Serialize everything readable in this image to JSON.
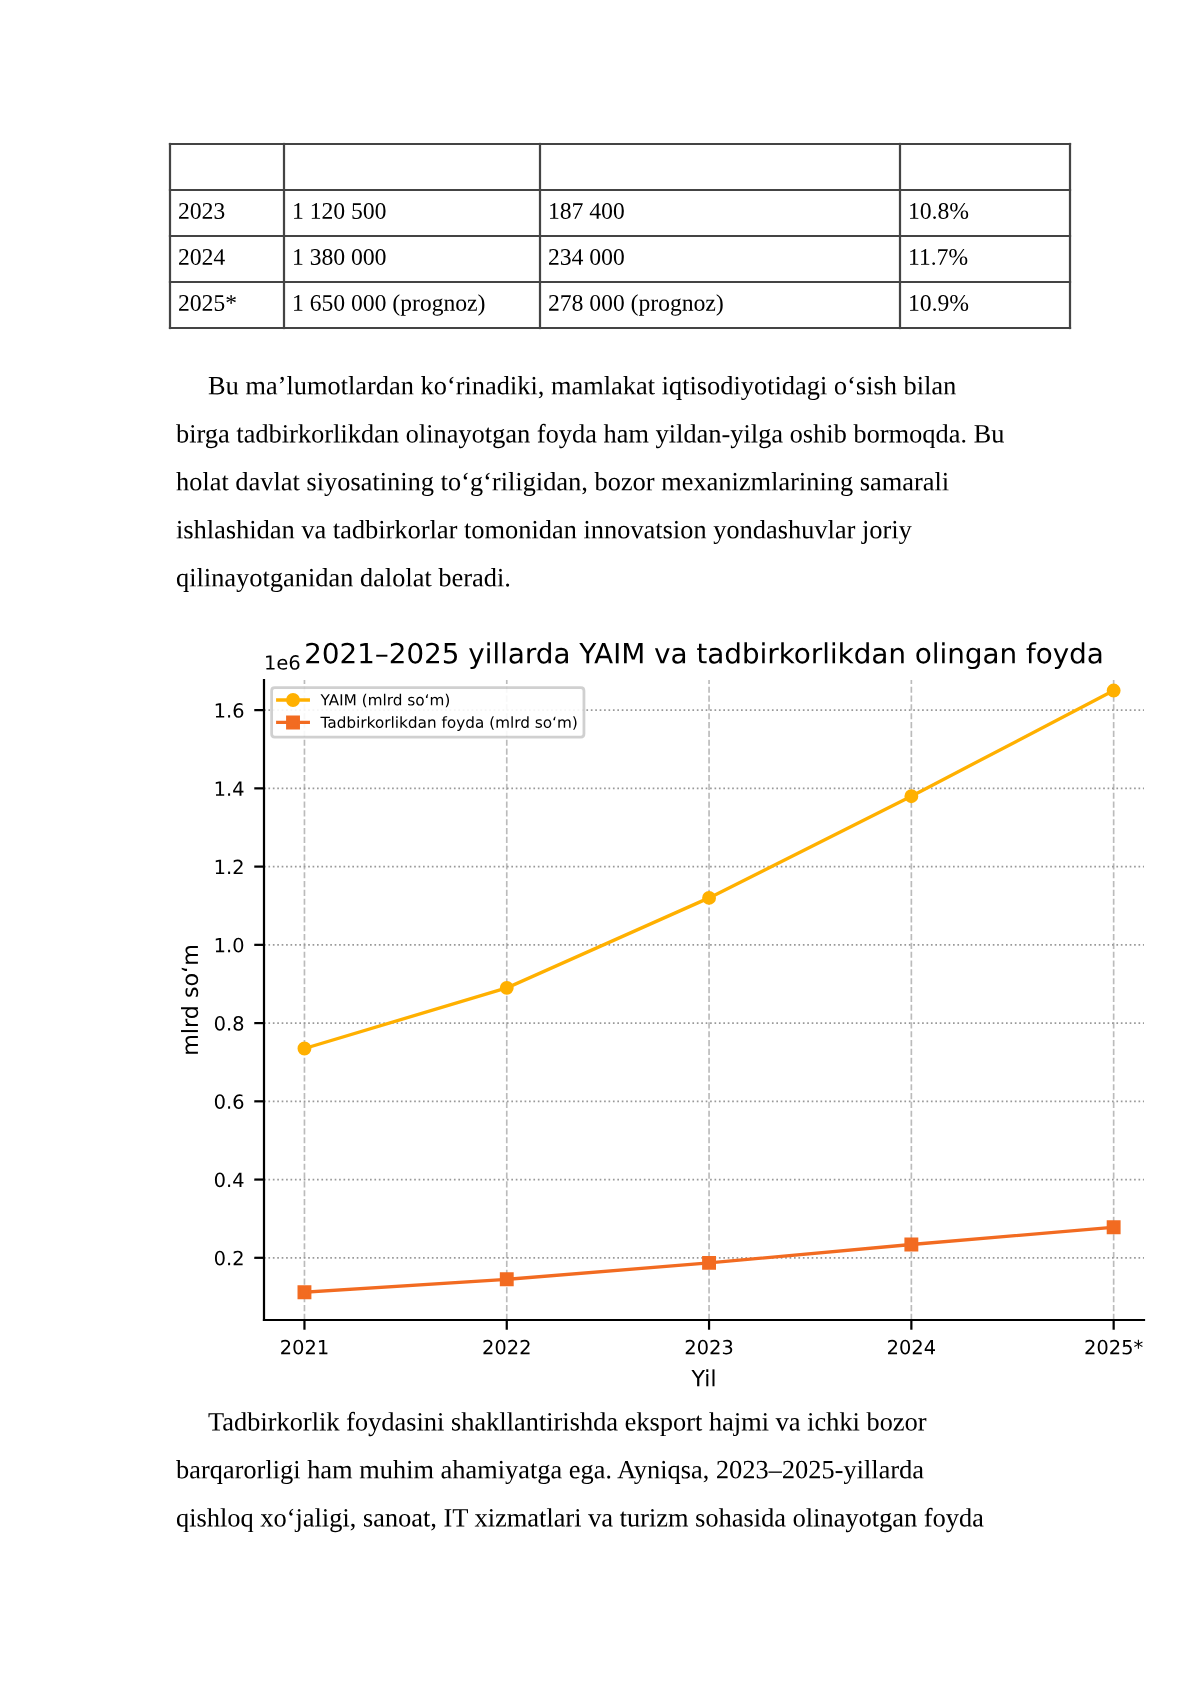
{
  "chart_data": {
    "type": "line",
    "title": "2021–2025 yillarda YAIM va tadbirkorlikdan olingan foyda",
    "xlabel": "Yil",
    "ylabel": "mlrd so‘m",
    "categories": [
      "2021",
      "2022",
      "2023",
      "2024",
      "2025*"
    ],
    "series": [
      {
        "name": "YAIM (mlrd so‘m)",
        "color": "#ffb000",
        "marker": "circle",
        "values": [
          0.735,
          0.89,
          1.12,
          1.38,
          1.65
        ]
      },
      {
        "name": "Tadbirkorlikdan foyda (mlrd so‘m)",
        "color": "#f26b21",
        "marker": "square",
        "values": [
          0.112,
          0.145,
          0.187,
          0.234,
          0.278
        ]
      }
    ],
    "ylim": [
      0.041,
      1.677
    ],
    "yticks": [
      {
        "value": 0.2,
        "label": "0.2"
      },
      {
        "value": 0.4,
        "label": "0.4"
      },
      {
        "value": 0.6,
        "label": "0.6"
      },
      {
        "value": 0.8,
        "label": "0.8"
      },
      {
        "value": 1.0,
        "label": "1.0"
      },
      {
        "value": 1.2,
        "label": "1.2"
      },
      {
        "value": 1.4,
        "label": "1.4"
      },
      {
        "value": 1.6,
        "label": "1.6"
      }
    ],
    "grid": true,
    "legend": "top left",
    "line_style": "solid",
    "annotations": [
      "1e6",
      "2023",
      "1 120 500",
      "187 400",
      "10.8%",
      "2024",
      "1 380 000",
      "234 000",
      "11.7%",
      "2025*",
      "1 650 000 (prognoz)",
      "278 000 (prognoz)",
      "10.9%",
      "Bu ma’lumotlardan ko‘rinadiki, mamlakat iqtisodiyotidagi o‘sish bilan",
      "birga tadbirkorlikdan olinayotgan foyda ham yildan-yilga oshib bormoqda. Bu",
      "holat davlat siyosatining to‘g‘riligidan, bozor mexanizmlarining samarali",
      "ishlashidan va tadbirkorlar tomonidan innovatsion yondashuvlar joriy",
      "qilinayotganidan dalolat beradi.",
      "Tadbirkorlik foydasini shakllantirishda eksport hajmi va ichki bozor",
      "barqarorligi ham muhim ahamiyatga ega. Ayniqsa, 2023–2025-yillarda",
      "qishloq xo‘jaligi, sanoat, IT xizmatlari va turizm sohasida olinayotgan foyda"
    ]
  }
}
